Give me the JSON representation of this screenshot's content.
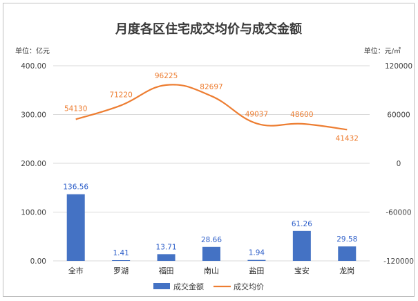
{
  "chart_data": {
    "type": "bar+line",
    "title": "月度各区住宅成交均价与成交金额",
    "left_unit": "单位：亿元",
    "right_unit": "单位：元/㎡",
    "categories": [
      "全市",
      "罗湖",
      "福田",
      "南山",
      "盐田",
      "宝安",
      "龙岗"
    ],
    "bar_series": {
      "name": "成交金额",
      "values": [
        136.56,
        1.41,
        13.71,
        28.66,
        1.94,
        61.26,
        29.58
      ],
      "labels": [
        "136.56",
        "1.41",
        "13.71",
        "28.66",
        "1.94",
        "61.26",
        "29.58"
      ],
      "color": "#4472c4",
      "label_color": "#2e5fc9"
    },
    "line_series": {
      "name": "成交均价",
      "values": [
        54130,
        71220,
        96225,
        82697,
        49037,
        48600,
        41432
      ],
      "labels": [
        "54130",
        "71220",
        "96225",
        "82697",
        "49037",
        "48600",
        "41432"
      ],
      "color": "#ed7d31",
      "smooth": true
    },
    "y_left": {
      "min": 0,
      "max": 400,
      "ticks": [
        "0.00",
        "100.00",
        "200.00",
        "300.00",
        "400.00"
      ]
    },
    "y_right": {
      "min": -120000,
      "max": 120000,
      "ticks": [
        "-120000",
        "-60000",
        "0",
        "60000",
        "120000"
      ]
    },
    "grid": true,
    "legend_position": "bottom"
  }
}
